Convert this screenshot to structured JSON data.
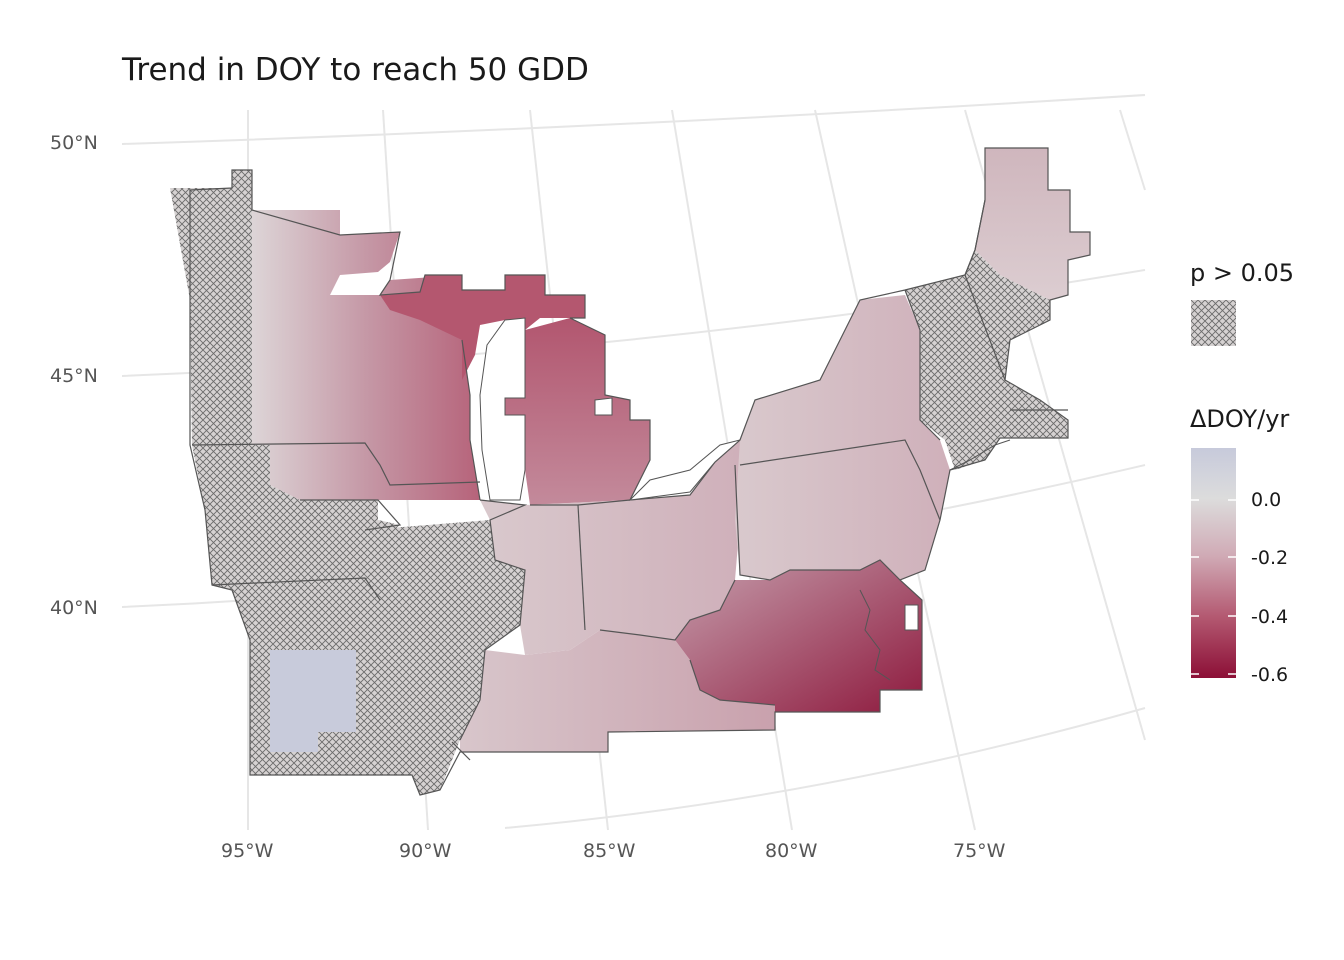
{
  "map": {
    "title": "Trend in DOY to reach 50 GDD",
    "lat_labels": [
      "50°N",
      "45°N",
      "40°N"
    ],
    "lon_labels": [
      "95°W",
      "90°W",
      "85°W",
      "80°W",
      "75°W"
    ],
    "region": "US Midwest and Northeast",
    "fill_variable_colors": {
      "positive": "#c7cadb",
      "zero": "#dcdcdc",
      "negative": "#8c0f36"
    },
    "hatch_color": "#6b6b6b",
    "state_border_color": "#555555",
    "graticule_color": "#e6e6e6"
  },
  "legend": {
    "hatch_title": "p > 0.05",
    "color_title": "ΔDOY/yr",
    "ticks": [
      "0.0",
      "-0.2",
      "-0.4",
      "-0.6"
    ],
    "tick_values": [
      0.0,
      -0.2,
      -0.4,
      -0.6
    ],
    "range": [
      -0.62,
      0.18
    ]
  }
}
